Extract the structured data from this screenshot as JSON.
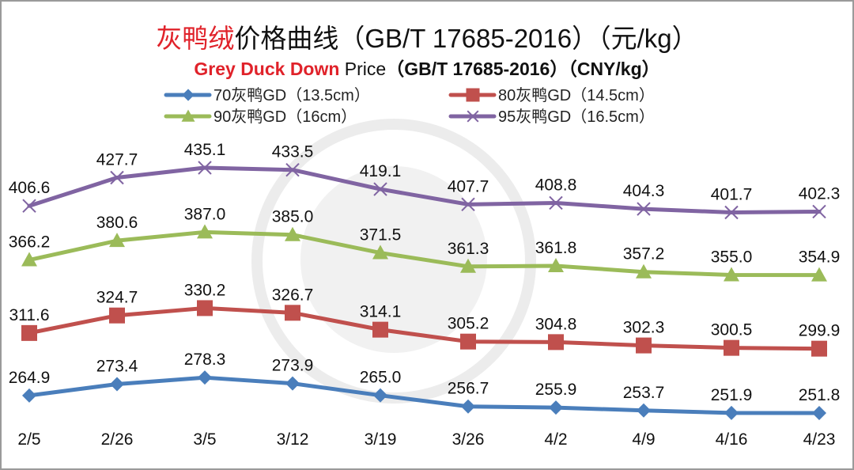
{
  "chart_data": {
    "type": "line",
    "title": {
      "cn_highlight": "灰鸭绒",
      "cn_rest": "价格曲线（GB/T 17685-2016）（元/kg）",
      "en_highlight": "Grey Duck Down",
      "en_plain": " Price",
      "en_rest": "（GB/T 17685-2016）（CNY/kg）"
    },
    "xlabel": "",
    "ylabel": "",
    "categories": [
      "2/5",
      "2/26",
      "3/5",
      "3/12",
      "3/19",
      "3/26",
      "4/2",
      "4/9",
      "4/16",
      "4/23"
    ],
    "ylim": [
      251.8,
      435.1
    ],
    "grid": false,
    "legend_position": "top",
    "series": [
      {
        "name": "70灰鸭GD（13.5cm）",
        "color": "#4a7ebb",
        "marker": "diamond",
        "values": [
          264.9,
          273.4,
          278.3,
          273.9,
          265.0,
          256.7,
          255.9,
          253.7,
          251.9,
          251.8
        ],
        "labels": [
          "264.9",
          "273.4",
          "278.3",
          "273.9",
          "265.0",
          "256.7",
          "255.9",
          "253.7",
          "251.9",
          "251.8"
        ]
      },
      {
        "name": "80灰鸭GD（14.5cm）",
        "color": "#c0504d",
        "marker": "square",
        "values": [
          311.6,
          324.7,
          330.2,
          326.7,
          314.1,
          305.2,
          304.8,
          302.3,
          300.5,
          299.9
        ],
        "labels": [
          "311.6",
          "324.7",
          "330.2",
          "326.7",
          "314.1",
          "305.2",
          "304.8",
          "302.3",
          "300.5",
          "299.9"
        ]
      },
      {
        "name": "90灰鸭GD（16cm）",
        "color": "#9bbb59",
        "marker": "triangle",
        "values": [
          366.2,
          380.6,
          387.0,
          385.0,
          371.5,
          361.3,
          361.8,
          357.2,
          355.0,
          354.9
        ],
        "labels": [
          "366.2",
          "380.6",
          "387.0",
          "385.0",
          "371.5",
          "361.3",
          "361.8",
          "357.2",
          "355.0",
          "354.9"
        ]
      },
      {
        "name": "95灰鸭GD（16.5cm）",
        "color": "#8064a2",
        "marker": "x",
        "values": [
          406.6,
          427.7,
          435.1,
          433.5,
          419.1,
          407.7,
          408.8,
          404.3,
          401.7,
          402.3
        ],
        "labels": [
          "406.6",
          "427.7",
          "435.1",
          "433.5",
          "419.1",
          "407.7",
          "408.8",
          "404.3",
          "401.7",
          "402.3"
        ]
      }
    ]
  }
}
